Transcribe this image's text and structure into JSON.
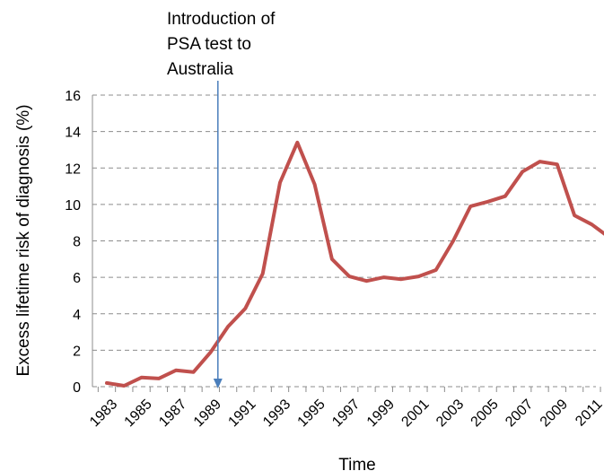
{
  "chart_data": {
    "type": "line",
    "title": "",
    "xlabel": "Time",
    "ylabel": "Excess lifetime risk of diagnosis (%)",
    "ylim": [
      0,
      16
    ],
    "yticks": [
      0,
      2,
      4,
      6,
      8,
      10,
      12,
      14,
      16
    ],
    "xlim": [
      1983,
      2012
    ],
    "xticks": [
      1983,
      1985,
      1987,
      1989,
      1991,
      1993,
      1995,
      1997,
      1999,
      2001,
      2003,
      2005,
      2007,
      2009,
      2011
    ],
    "grid": "horizontal-dashed",
    "legend": "none",
    "series": [
      {
        "color": "#C0504D",
        "x": [
          1983,
          1984,
          1985,
          1986,
          1987,
          1988,
          1989,
          1990,
          1991,
          1992,
          1993,
          1994,
          1995,
          1996,
          1997,
          1998,
          1999,
          2000,
          2001,
          2002,
          2003,
          2004,
          2005,
          2006,
          2007,
          2008,
          2009,
          2010,
          2011,
          2012
        ],
        "y": [
          0.2,
          0.05,
          0.5,
          0.45,
          0.9,
          0.8,
          1.9,
          3.3,
          4.3,
          6.2,
          11.2,
          13.4,
          11.1,
          7.0,
          6.05,
          5.8,
          6.0,
          5.9,
          6.05,
          6.4,
          8.0,
          9.9,
          10.15,
          10.45,
          11.8,
          12.35,
          12.2,
          9.4,
          8.9,
          8.2
        ]
      }
    ],
    "annotations": [
      {
        "text_lines": [
          "Introduction of",
          "PSA test to",
          "Australia"
        ],
        "x": 1989,
        "arrow_color": "#4A7EBB"
      }
    ]
  }
}
